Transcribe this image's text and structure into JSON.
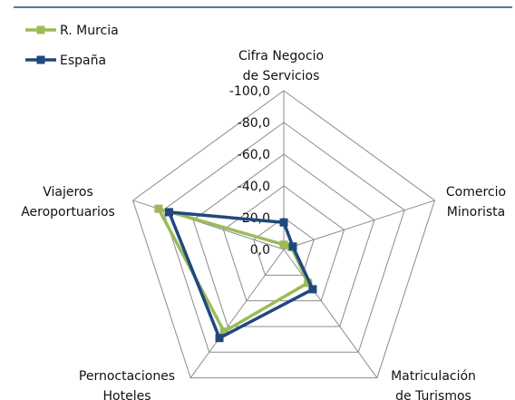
{
  "chart_data": {
    "type": "radar",
    "categories": [
      [
        "Cifra Negocio",
        "de Servicios"
      ],
      [
        "Comercio",
        "Minorista"
      ],
      [
        "Matriculación",
        "de Turismos"
      ],
      [
        "Pernoctaciones",
        "Hoteles"
      ],
      [
        "Viajeros",
        "Aeroportuarios"
      ]
    ],
    "series": [
      {
        "name": "R. Murcia",
        "color": "#9bbb59",
        "values": [
          -3,
          -5,
          -26,
          -64,
          -83
        ]
      },
      {
        "name": "España",
        "color": "#1f497d",
        "values": [
          -17,
          -6,
          -31,
          -69,
          -76
        ]
      }
    ],
    "rlim": [
      0,
      -100
    ],
    "rticks": [
      {
        "value": -100,
        "label": "-100,0"
      },
      {
        "value": -80,
        "label": "-80,0"
      },
      {
        "value": -60,
        "label": "-60,0"
      },
      {
        "value": -40,
        "label": "-40,0"
      },
      {
        "value": -20,
        "label": "-20,0"
      },
      {
        "value": 0,
        "label": "0,0"
      }
    ],
    "grid": true,
    "legend": "upper left"
  }
}
